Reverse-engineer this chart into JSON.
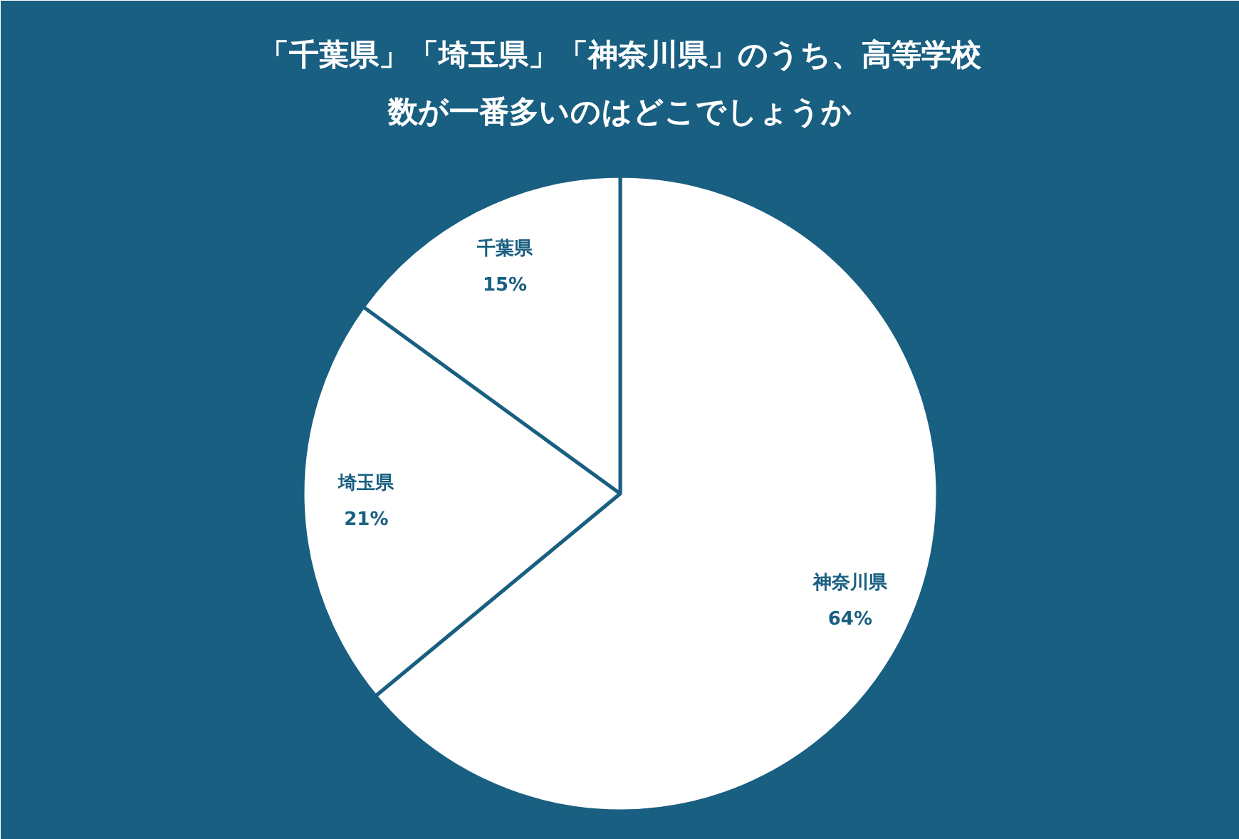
{
  "chart_data": {
    "type": "pie",
    "title": "「千葉県」「埼玉県」「神奈川県」のうち、高等学校",
    "subtitle": "数が一番多いのはどこでしょうか",
    "categories": [
      "神奈川県",
      "埼玉県",
      "千葉県"
    ],
    "values": [
      64,
      21,
      15
    ],
    "colors": [
      "#ffffff",
      "#ffffff",
      "#ffffff"
    ],
    "value_labels": [
      "64%",
      "21%",
      "15%"
    ]
  }
}
